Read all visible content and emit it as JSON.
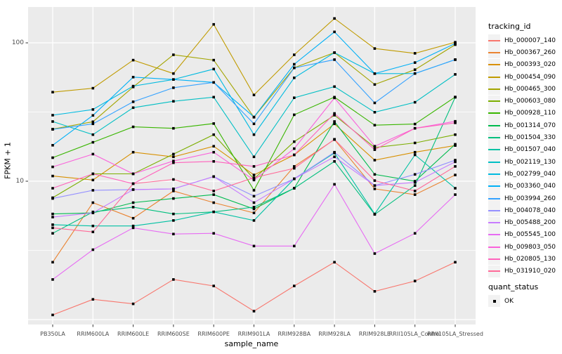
{
  "chart_data": {
    "type": "line",
    "xlabel": "sample_name",
    "ylabel": "FPKM + 1",
    "y_scale": "log10",
    "y_ticks": [
      {
        "label": "100",
        "value": 100
      },
      {
        "label": "10",
        "value": 10
      }
    ],
    "ylim": [
      1.0,
      180
    ],
    "grid": "on",
    "panel_bg": "#ebebeb",
    "grid_color": "#ffffff",
    "tick_label_color": "#4d4d4d",
    "marker": "black-square",
    "legend_title": "tracking_id",
    "legend_position": "right",
    "categories": [
      "PB350LA",
      "RRIM600LA",
      "RRIM600LE",
      "RRIM600SE",
      "RRIM600PE",
      "RRIM901LA",
      "RRIM928BA",
      "RRIM928LA",
      "RRIM928LE",
      "RRII105LA_Control",
      "RRII105LA_Stressed"
    ],
    "series": [
      {
        "name": "Hb_000007_140",
        "color": "#F8766D",
        "values": [
          1.08,
          1.4,
          1.3,
          1.95,
          1.75,
          1.15,
          1.75,
          2.6,
          1.6,
          1.9,
          2.6
        ]
      },
      {
        "name": "Hb_000367_260",
        "color": "#EA8331",
        "values": [
          2.6,
          7.0,
          5.4,
          8.5,
          7.0,
          5.9,
          12.8,
          20.0,
          8.8,
          8.0,
          11.1
        ]
      },
      {
        "name": "Hb_000393_020",
        "color": "#D89000",
        "values": [
          10.9,
          10.2,
          16.2,
          15.0,
          17.9,
          11.1,
          15.5,
          26.0,
          14.2,
          16.2,
          18.1
        ]
      },
      {
        "name": "Hb_000454_090",
        "color": "#C09B00",
        "values": [
          44.0,
          47.0,
          75.0,
          60.0,
          136.0,
          42.0,
          82.0,
          150.0,
          91.0,
          84.0,
          101.0
        ]
      },
      {
        "name": "Hb_000465_300",
        "color": "#A3A500",
        "values": [
          23.8,
          26.9,
          48.0,
          82.0,
          75.0,
          29.0,
          66.0,
          85.0,
          50.0,
          64.0,
          97.0
        ]
      },
      {
        "name": "Hb_000603_080",
        "color": "#7CAE00",
        "values": [
          7.6,
          11.3,
          11.3,
          15.7,
          21.7,
          10.4,
          19.3,
          30.0,
          17.5,
          18.9,
          21.7
        ]
      },
      {
        "name": "Hb_000928_110",
        "color": "#39B600",
        "values": [
          14.8,
          19.1,
          24.7,
          24.1,
          26.1,
          8.6,
          30.2,
          40.5,
          25.4,
          25.9,
          40.6
        ]
      },
      {
        "name": "Hb_001314_070",
        "color": "#00BB4E",
        "values": [
          5.8,
          5.9,
          7.0,
          7.5,
          8.0,
          6.3,
          8.9,
          27.0,
          11.2,
          10.0,
          18.5
        ]
      },
      {
        "name": "Hb_001504_330",
        "color": "#00BF7D",
        "values": [
          4.2,
          6.0,
          6.5,
          5.8,
          6.0,
          6.5,
          8.9,
          13.9,
          5.75,
          9.3,
          40.4
        ]
      },
      {
        "name": "Hb_001507_040",
        "color": "#00C1A3",
        "values": [
          4.85,
          4.75,
          4.75,
          5.2,
          6.0,
          5.2,
          10.4,
          16.0,
          5.8,
          15.5,
          8.9
        ]
      },
      {
        "name": "Hb_002119_130",
        "color": "#00BFC4",
        "values": [
          27.0,
          21.7,
          34.0,
          37.8,
          40.5,
          15.0,
          40.1,
          48.3,
          31.5,
          37.2,
          59.2
        ]
      },
      {
        "name": "Hb_002799_040",
        "color": "#00BAE0",
        "values": [
          30.0,
          33.0,
          48.7,
          54.3,
          64.7,
          21.7,
          55.9,
          85.0,
          59.9,
          60.0,
          75.6
        ]
      },
      {
        "name": "Hb_003360_040",
        "color": "#00B0F6",
        "values": [
          18.2,
          29.9,
          56.5,
          54.3,
          51.8,
          29.1,
          70.0,
          120.0,
          59.9,
          72.0,
          99.0
        ]
      },
      {
        "name": "Hb_003994_260",
        "color": "#35A2FF",
        "values": [
          23.7,
          26.0,
          37.5,
          47.4,
          51.8,
          26.0,
          65.9,
          75.6,
          36.8,
          60.0,
          75.6
        ]
      },
      {
        "name": "Hb_004078_040",
        "color": "#9590FF",
        "values": [
          7.5,
          8.6,
          8.7,
          8.8,
          10.8,
          7.8,
          10.4,
          16.2,
          9.3,
          11.2,
          14.2
        ]
      },
      {
        "name": "Hb_005488_200",
        "color": "#C77CFF",
        "values": [
          5.5,
          5.9,
          8.7,
          8.8,
          10.8,
          7.0,
          10.4,
          15.0,
          9.3,
          9.8,
          13.8
        ]
      },
      {
        "name": "Hb_005545_100",
        "color": "#E76BF3",
        "values": [
          1.95,
          3.2,
          4.6,
          4.15,
          4.2,
          3.4,
          3.4,
          9.5,
          3.0,
          4.2,
          8.0
        ]
      },
      {
        "name": "Hb_009803_050",
        "color": "#FA62DB",
        "values": [
          12.7,
          15.7,
          11.3,
          14.0,
          16.2,
          10.2,
          17.2,
          40.0,
          17.9,
          24.1,
          27.1
        ]
      },
      {
        "name": "Hb_020805_130",
        "color": "#FF62BC",
        "values": [
          8.9,
          11.3,
          9.6,
          13.6,
          13.9,
          12.8,
          15.5,
          30.9,
          16.9,
          24.1,
          26.4
        ]
      },
      {
        "name": "Hb_031910_020",
        "color": "#FF6A98",
        "values": [
          4.6,
          4.3,
          9.6,
          10.3,
          8.5,
          10.6,
          12.4,
          20.1,
          10.1,
          8.5,
          12.8
        ]
      }
    ],
    "quant_legend": {
      "title": "quant_status",
      "items": [
        {
          "label": "OK",
          "marker": "black-square"
        }
      ]
    }
  }
}
